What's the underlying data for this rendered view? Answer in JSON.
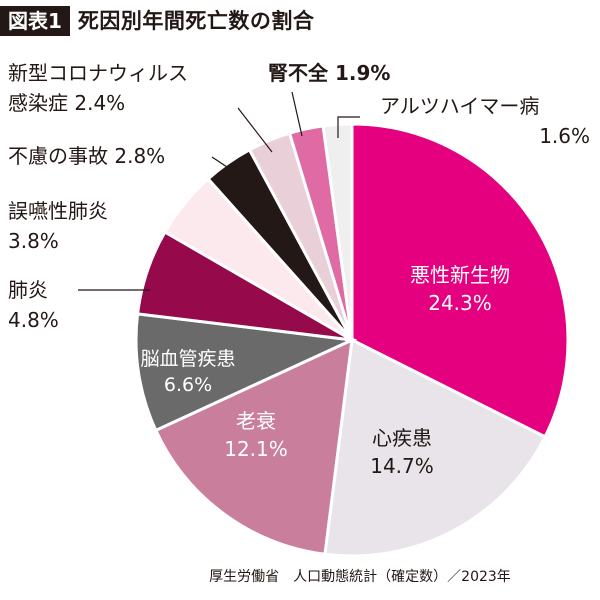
{
  "header": {
    "tag": "図表1",
    "title": "死因別年間死亡数の割合"
  },
  "chart_data": {
    "type": "pie",
    "title": "死因別年間死亡数の割合",
    "unit": "%",
    "slices": [
      {
        "name": "悪性新生物",
        "value": 24.3,
        "color": "#e4007f",
        "label_text_color": "#ffffff"
      },
      {
        "name": "心疾患",
        "value": 14.7,
        "color": "#e8e4ea",
        "label_text_color": "#231815"
      },
      {
        "name": "老衰",
        "value": 12.1,
        "color": "#c97f9b",
        "label_text_color": "#ffffff"
      },
      {
        "name": "脳血管疾患",
        "value": 6.6,
        "color": "#6a6a6a",
        "label_text_color": "#ffffff"
      },
      {
        "name": "肺炎",
        "value": 4.8,
        "color": "#960a4b",
        "label_text_color": "#231815"
      },
      {
        "name": "誤嚥性肺炎",
        "value": 3.8,
        "color": "#fbe9ee",
        "label_text_color": "#231815"
      },
      {
        "name": "不慮の事故",
        "value": 2.8,
        "color": "#231815",
        "label_text_color": "#231815"
      },
      {
        "name": "新型コロナウィルス感染症",
        "value": 2.4,
        "color": "#e9cfd8",
        "label_text_color": "#231815"
      },
      {
        "name": "腎不全",
        "value": 1.9,
        "color": "#e06aa3",
        "label_text_color": "#231815"
      },
      {
        "name": "アルツハイマー病",
        "value": 1.6,
        "color": "#efefef",
        "label_text_color": "#231815"
      }
    ],
    "labels": {
      "悪性新生物": [
        "悪性新生物",
        "24.3%"
      ],
      "心疾患": [
        "心疾患",
        "14.7%"
      ],
      "老衰": [
        "老衰",
        "12.1%"
      ],
      "脳血管疾患": [
        "脳血管疾患",
        "6.6%"
      ],
      "肺炎": [
        "肺炎",
        "4.8%"
      ],
      "誤嚥性肺炎": [
        "誤嚥性肺炎",
        "3.8%"
      ],
      "不慮の事故": [
        "不慮の事故 2.8%"
      ],
      "新型コロナウィルス感染症": [
        "新型コロナウィルス",
        "感染症 2.4%"
      ],
      "腎不全": [
        "腎不全 1.9%"
      ],
      "アルツハイマー病": [
        "アルツハイマー病",
        "1.6%"
      ]
    }
  },
  "source": "厚生労働省　人口動態統計（確定数）／2023年"
}
